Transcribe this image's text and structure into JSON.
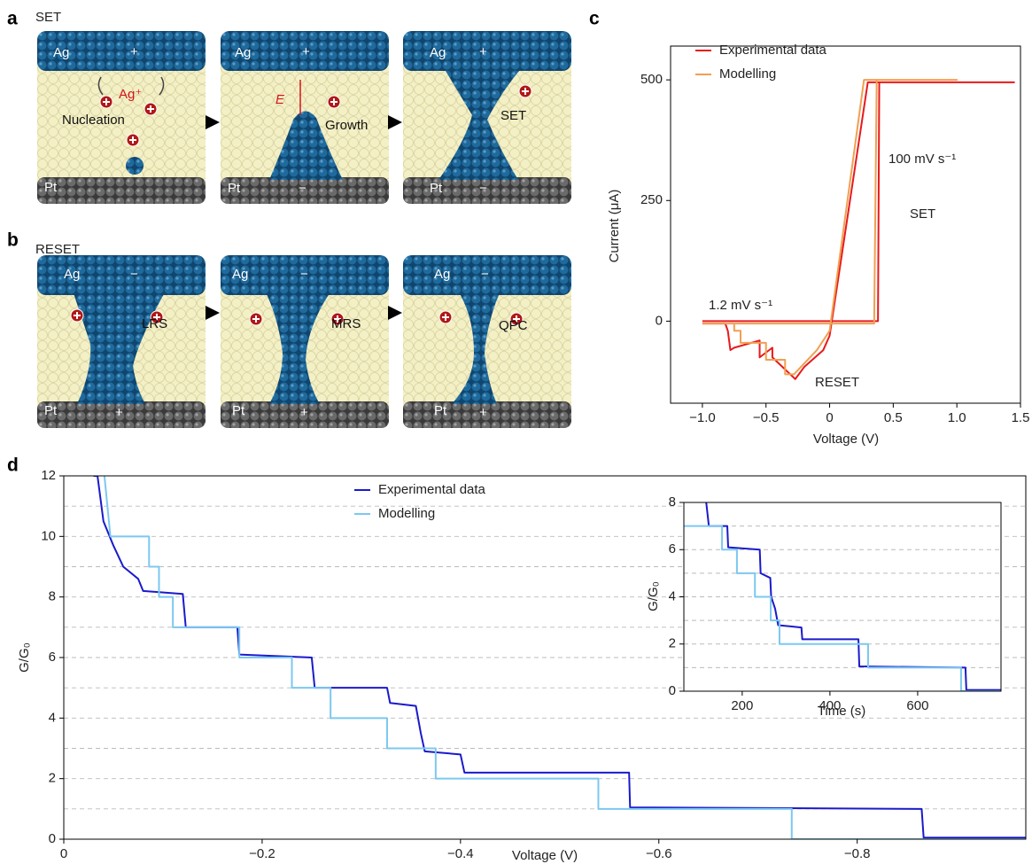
{
  "schematic": {
    "a": {
      "letter": "a",
      "title": "SET",
      "cells": [
        {
          "top": "Ag",
          "top_sign": "+",
          "ion": "Ag⁺",
          "state": "Nucleation",
          "bottom": "Pt"
        },
        {
          "top": "Ag",
          "top_sign": "+",
          "field": "E",
          "state": "Growth",
          "bottom": "Pt",
          "bottom_sign": "−"
        },
        {
          "top": "Ag",
          "top_sign": "+",
          "state": "SET",
          "bottom": "Pt",
          "bottom_sign": "−"
        }
      ]
    },
    "b": {
      "letter": "b",
      "title": "RESET",
      "cells": [
        {
          "top": "Ag",
          "top_sign": "−",
          "state": "LRS",
          "bottom": "Pt",
          "bottom_sign": "+"
        },
        {
          "top": "Ag",
          "top_sign": "−",
          "state": "MRS",
          "bottom": "Pt",
          "bottom_sign": "+"
        },
        {
          "top": "Ag",
          "top_sign": "−",
          "state": "QPC",
          "bottom": "Pt",
          "bottom_sign": "+"
        }
      ]
    }
  },
  "chart_data": [
    {
      "type": "line",
      "panel": "c",
      "x_label": "Voltage (V)",
      "y_label": "Current (μA)",
      "xlim": [
        -1.25,
        1.5
      ],
      "ylim": [
        -170,
        570
      ],
      "xticks": [
        {
          "value": -1,
          "label": "−1.0"
        },
        {
          "value": -0.5,
          "label": "−0.5"
        },
        0,
        0.5,
        {
          "value": 1,
          "label": "1.0"
        },
        1.5
      ],
      "yticks": [
        0,
        250,
        500
      ],
      "legend": "upper left",
      "series": [
        {
          "name": "Experimental data",
          "color": "#e8191c",
          "x": [
            -1.0,
            0.38,
            0.39,
            1.45,
            0.3,
            0.0,
            -0.05,
            -0.2,
            -0.27,
            -0.35,
            -0.45,
            -0.45,
            -0.55,
            -0.55,
            -0.75,
            -0.78,
            -0.8,
            -0.82,
            -1.0
          ],
          "values": [
            0,
            0,
            495,
            495,
            495,
            -30,
            -60,
            -95,
            -120,
            -100,
            -75,
            -55,
            -75,
            -40,
            -55,
            -60,
            -20,
            -5,
            -5
          ]
        },
        {
          "name": "Modelling",
          "color": "#f0a050",
          "x": [
            -1.0,
            0.35,
            0.37,
            1.0,
            0.27,
            0.0,
            -0.1,
            -0.28,
            -0.35,
            -0.35,
            -0.5,
            -0.5,
            -0.7,
            -0.7,
            -0.75,
            -0.75,
            -1.0
          ],
          "values": [
            -5,
            -5,
            500,
            500,
            500,
            -20,
            -60,
            -110,
            -110,
            -80,
            -80,
            -45,
            -45,
            -20,
            -20,
            -5,
            -5
          ]
        }
      ],
      "annotations": [
        "100 mV s⁻¹",
        "SET",
        "1.2 mV s⁻¹",
        "RESET"
      ]
    },
    {
      "type": "line",
      "panel": "d",
      "x_label": "Voltage (V)",
      "y_label": "G/G₀",
      "xlim": [
        0,
        -0.97
      ],
      "ylim": [
        0,
        12
      ],
      "xticks": [
        0,
        {
          "value": -0.2,
          "label": "−0.2"
        },
        {
          "value": -0.4,
          "label": "−0.4"
        },
        {
          "value": -0.6,
          "label": "−0.6"
        },
        {
          "value": -0.8,
          "label": "−0.8"
        }
      ],
      "yticks": [
        0,
        2,
        4,
        6,
        8,
        10,
        12
      ],
      "dashed_grid": [
        1,
        2,
        3,
        4,
        5,
        6,
        7,
        8,
        9,
        10,
        11
      ],
      "legend": "upper center",
      "series": [
        {
          "name": "Experimental data",
          "color": "#1a1acc",
          "x": [
            -0.03,
            -0.034,
            -0.04,
            -0.05,
            -0.06,
            -0.075,
            -0.08,
            -0.12,
            -0.123,
            -0.175,
            -0.177,
            -0.25,
            -0.253,
            -0.326,
            -0.329,
            -0.355,
            -0.36,
            -0.364,
            -0.4,
            -0.404,
            -0.57,
            -0.571,
            -0.865,
            -0.867,
            -0.97
          ],
          "values": [
            12,
            12,
            10.5,
            9.7,
            9.0,
            8.6,
            8.2,
            8.1,
            7.0,
            7.0,
            6.1,
            6.0,
            5.0,
            5.0,
            4.5,
            4.4,
            3.5,
            2.9,
            2.8,
            2.2,
            2.2,
            1.05,
            1.0,
            0.05,
            0.05
          ]
        },
        {
          "name": "Modelling",
          "color": "#7cc8f0",
          "x": [
            -0.041,
            -0.047,
            -0.086,
            -0.086,
            -0.096,
            -0.096,
            -0.11,
            -0.11,
            -0.177,
            -0.177,
            -0.23,
            -0.23,
            -0.269,
            -0.269,
            -0.326,
            -0.326,
            -0.375,
            -0.375,
            -0.539,
            -0.539,
            -0.734,
            -0.734,
            -0.97
          ],
          "values": [
            12,
            10,
            10,
            9,
            9,
            8,
            8,
            7,
            7,
            6,
            6,
            5,
            5,
            4,
            4,
            3,
            3,
            2,
            2,
            1,
            1,
            0,
            0
          ]
        }
      ]
    },
    {
      "type": "line",
      "x_label": "Time (s)",
      "y_label": "G/G₀",
      "xlim": [
        67,
        790
      ],
      "ylim": [
        0,
        8
      ],
      "xticks": [
        200,
        400,
        600
      ],
      "yticks": [
        0,
        2,
        4,
        6,
        8
      ],
      "dashed_grid": [
        1,
        2,
        3,
        4,
        5,
        6,
        7
      ],
      "series": [
        {
          "color": "#1a1acc",
          "x": [
            118,
            124,
            166,
            168,
            240,
            242,
            264,
            266,
            275,
            282,
            335,
            337,
            465,
            467,
            709,
            711,
            790
          ],
          "values": [
            8,
            7,
            7,
            6.1,
            6.0,
            5.0,
            4.8,
            4.0,
            3.5,
            2.8,
            2.7,
            2.2,
            2.2,
            1.05,
            1.0,
            0.05,
            0.05
          ]
        },
        {
          "color": "#7cc8f0",
          "x": [
            67,
            154,
            154,
            188,
            188,
            229,
            229,
            265,
            265,
            285,
            285,
            487,
            487,
            699,
            699,
            790
          ],
          "values": [
            7,
            7,
            6,
            6,
            5,
            5,
            4,
            4,
            3,
            3,
            2,
            2,
            1,
            1,
            0,
            0
          ]
        }
      ]
    }
  ]
}
